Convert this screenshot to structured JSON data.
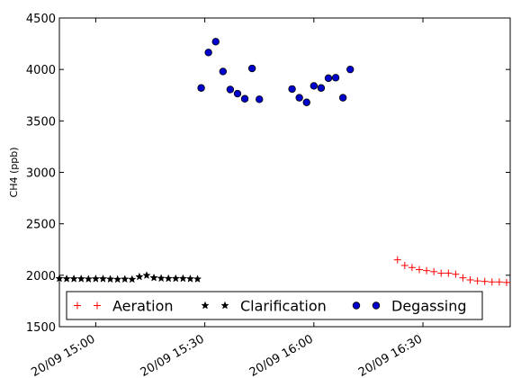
{
  "chart_data": {
    "type": "scatter",
    "title": "",
    "xlabel": "",
    "ylabel": "CH4 (ppb)",
    "ylim": [
      1500,
      4500
    ],
    "xlim": [
      "20/09 14:50",
      "20/09 16:54"
    ],
    "yticks": [
      "1500",
      "2000",
      "2500",
      "3000",
      "3500",
      "4000",
      "4500"
    ],
    "xticks": [
      "20/09 15:00",
      "20/09 15:30",
      "20/09 16:00",
      "20/09 16:30"
    ],
    "grid": false,
    "legend_position": "lower center",
    "series": [
      {
        "name": "Aeration",
        "marker": "plus",
        "color": "#ff0000",
        "points": [
          [
            "20/09 16:23",
            2150
          ],
          [
            "20/09 16:25",
            2095
          ],
          [
            "20/09 16:27",
            2075
          ],
          [
            "20/09 16:29",
            2055
          ],
          [
            "20/09 16:31",
            2045
          ],
          [
            "20/09 16:33",
            2035
          ],
          [
            "20/09 16:35",
            2020
          ],
          [
            "20/09 16:37",
            2020
          ],
          [
            "20/09 16:39",
            2010
          ],
          [
            "20/09 16:41",
            1975
          ],
          [
            "20/09 16:43",
            1955
          ],
          [
            "20/09 16:45",
            1945
          ],
          [
            "20/09 16:47",
            1940
          ],
          [
            "20/09 16:49",
            1935
          ],
          [
            "20/09 16:51",
            1935
          ],
          [
            "20/09 16:53",
            1930
          ]
        ]
      },
      {
        "name": "Clarification",
        "marker": "star",
        "color": "#000000",
        "points": [
          [
            "20/09 14:50",
            1968
          ],
          [
            "20/09 14:52",
            1965
          ],
          [
            "20/09 14:54",
            1965
          ],
          [
            "20/09 14:56",
            1965
          ],
          [
            "20/09 14:58",
            1963
          ],
          [
            "20/09 15:00",
            1965
          ],
          [
            "20/09 15:02",
            1965
          ],
          [
            "20/09 15:04",
            1962
          ],
          [
            "20/09 15:06",
            1960
          ],
          [
            "20/09 15:08",
            1962
          ],
          [
            "20/09 15:10",
            1960
          ],
          [
            "20/09 15:12",
            1985
          ],
          [
            "20/09 15:14",
            1998
          ],
          [
            "20/09 15:16",
            1975
          ],
          [
            "20/09 15:18",
            1970
          ],
          [
            "20/09 15:20",
            1968
          ],
          [
            "20/09 15:22",
            1968
          ],
          [
            "20/09 15:24",
            1968
          ],
          [
            "20/09 15:26",
            1965
          ],
          [
            "20/09 15:28",
            1963
          ]
        ]
      },
      {
        "name": "Degassing",
        "marker": "circle",
        "color": "#0000cc",
        "points": [
          [
            "20/09 15:29",
            3820
          ],
          [
            "20/09 15:31",
            4165
          ],
          [
            "20/09 15:33",
            4270
          ],
          [
            "20/09 15:35",
            3980
          ],
          [
            "20/09 15:37",
            3805
          ],
          [
            "20/09 15:39",
            3765
          ],
          [
            "20/09 15:41",
            3715
          ],
          [
            "20/09 15:43",
            4010
          ],
          [
            "20/09 15:45",
            3710
          ],
          [
            "20/09 15:54",
            3810
          ],
          [
            "20/09 15:56",
            3725
          ],
          [
            "20/09 15:58",
            3680
          ],
          [
            "20/09 16:00",
            3840
          ],
          [
            "20/09 16:02",
            3820
          ],
          [
            "20/09 16:04",
            3915
          ],
          [
            "20/09 16:06",
            3920
          ],
          [
            "20/09 16:08",
            3725
          ],
          [
            "20/09 16:10",
            4000
          ]
        ]
      }
    ]
  }
}
